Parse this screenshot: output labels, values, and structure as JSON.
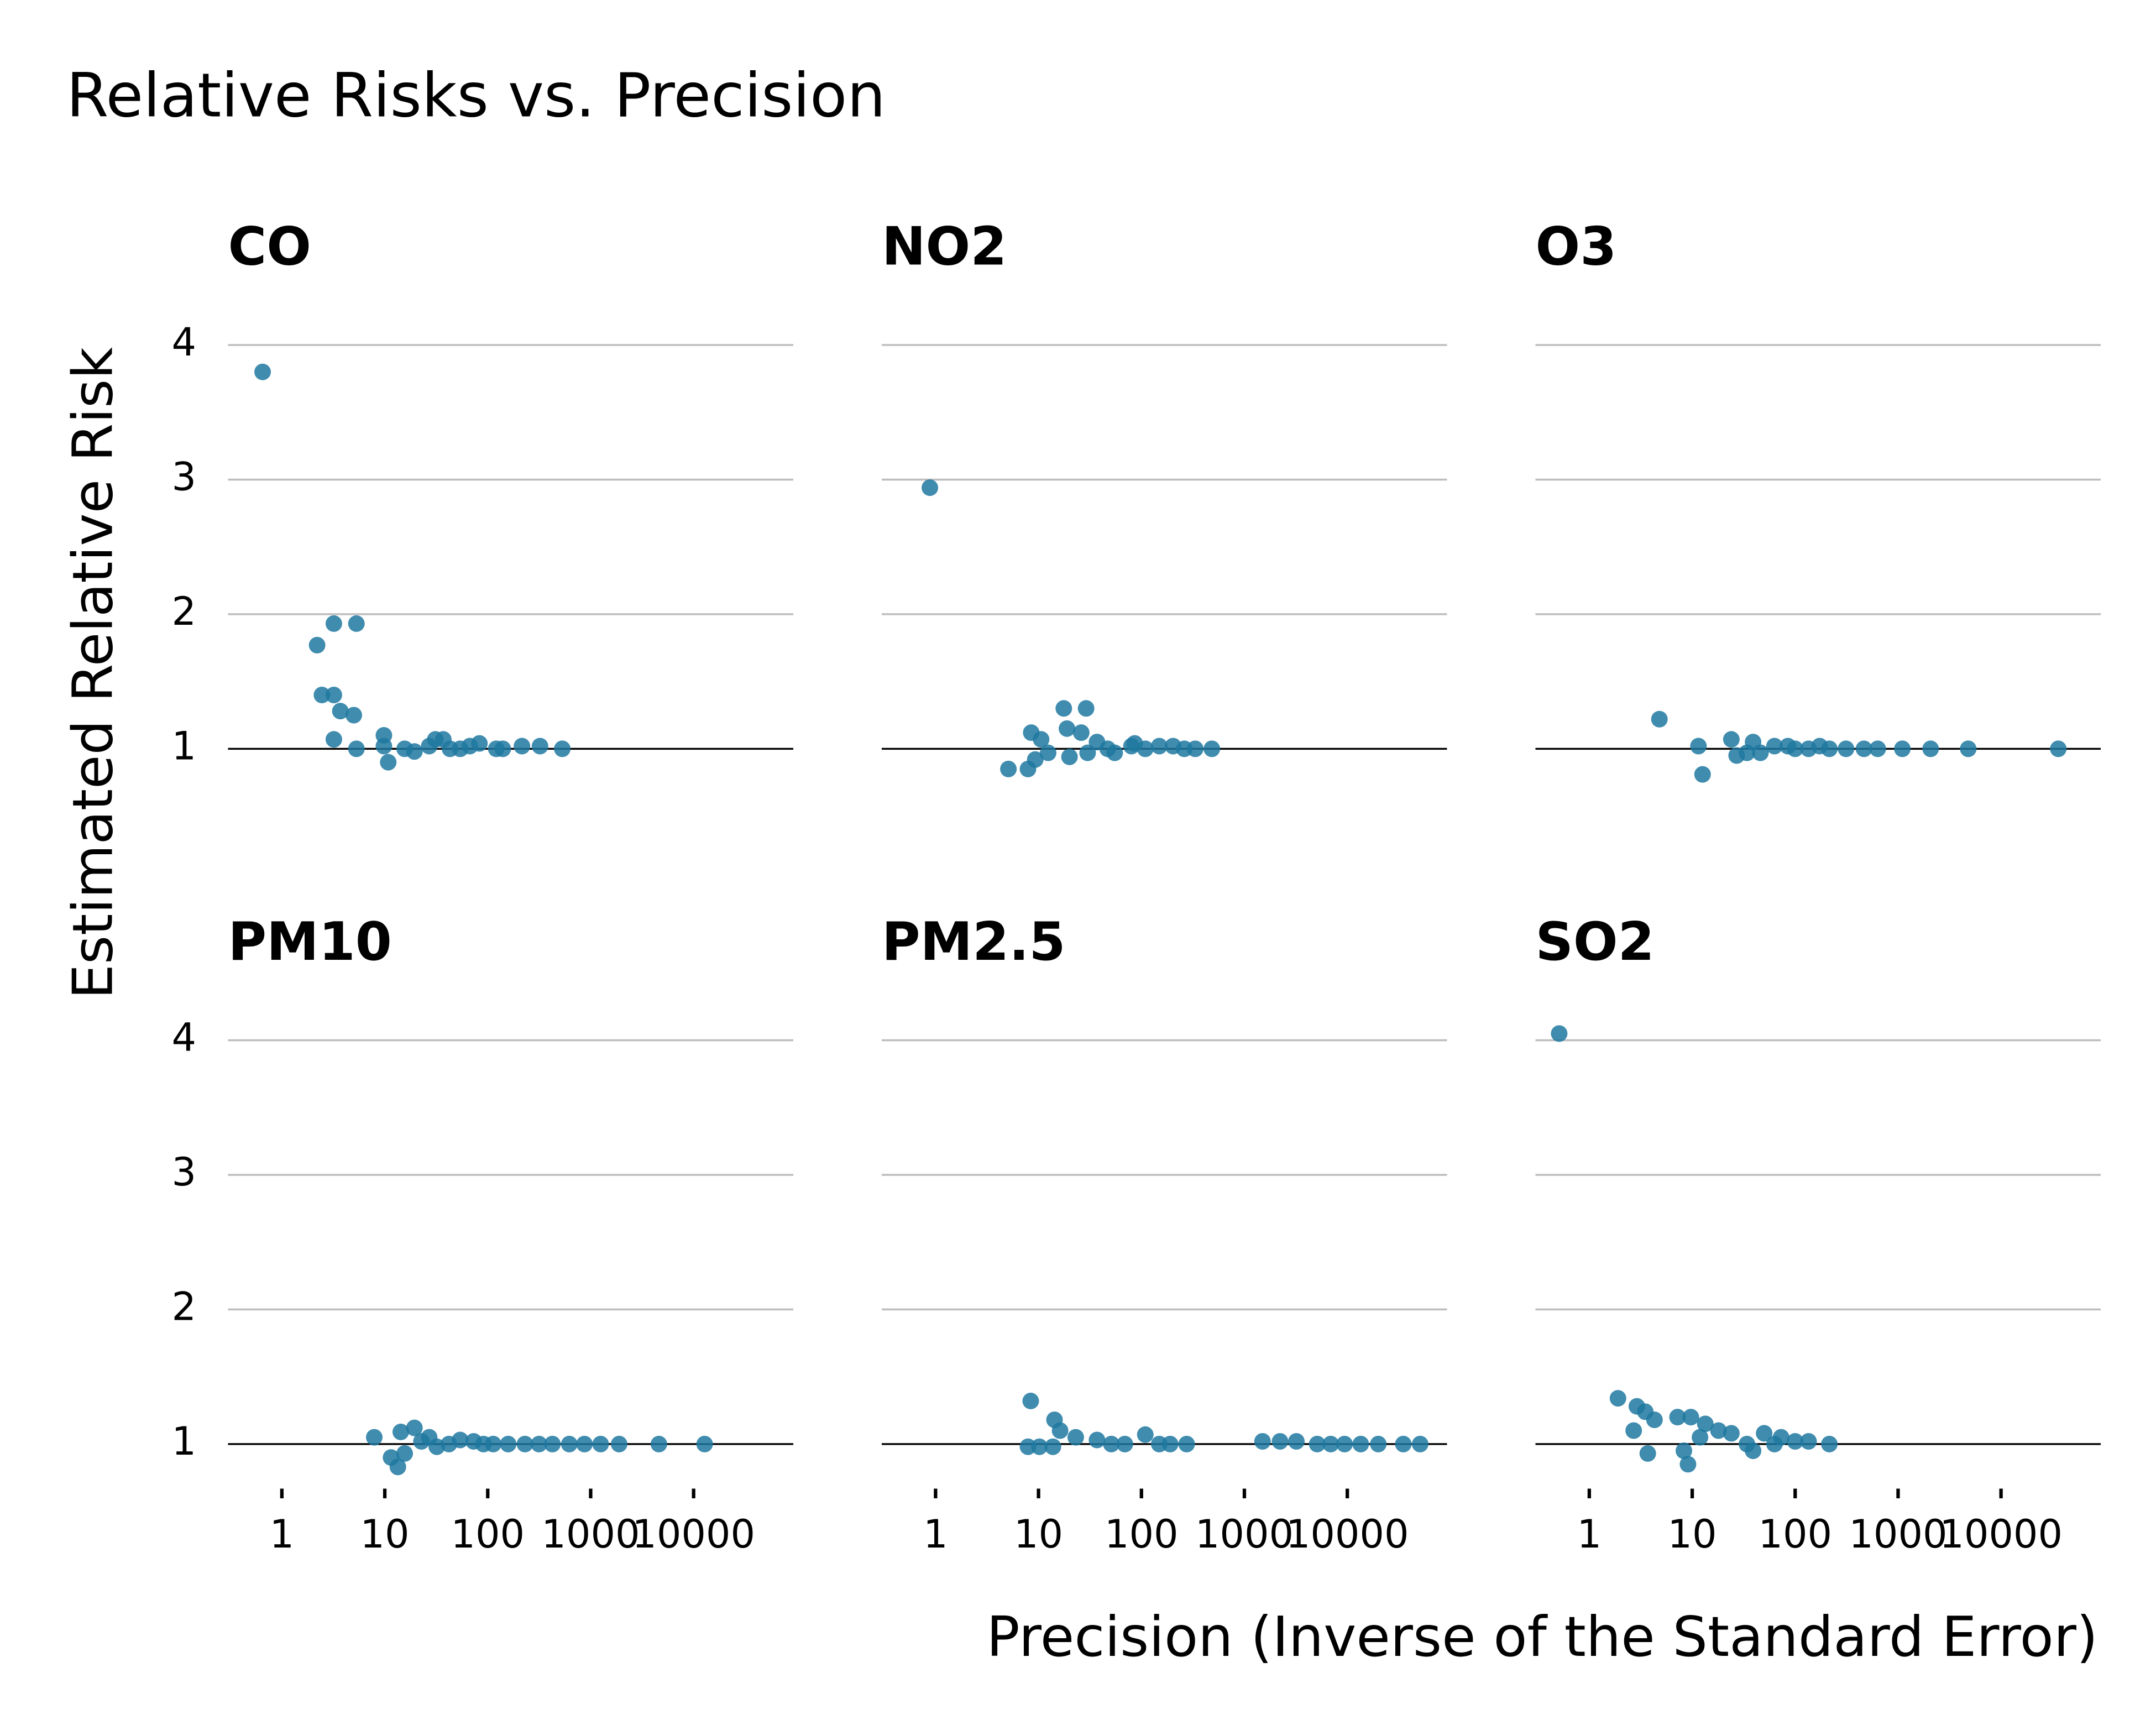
{
  "title": "Relative Risks vs. Precision",
  "x_label": "Precision (Inverse of the Standard Error)",
  "y_label": "Estimated Relative Risk",
  "xlim": [
    0.3,
    93000
  ],
  "x_scale": "log",
  "xticks": [
    1,
    10,
    100,
    1000,
    10000
  ],
  "ylim": [
    0.72,
    4.15
  ],
  "yticks": [
    1,
    2,
    3,
    4
  ],
  "grid": true,
  "hline": 1,
  "color": "#1f78a0",
  "chart_data": [
    {
      "type": "scatter",
      "title": "CO",
      "x": [
        0.65,
        2.2,
        3.2,
        5.3,
        2.45,
        3.2,
        3.7,
        5.0,
        3.2,
        5.3,
        9.8,
        9.8,
        10.8,
        15.6,
        19.4,
        27,
        31,
        37,
        43,
        54,
        67,
        83,
        121,
        140,
        215,
        322,
        530
      ],
      "values": [
        3.8,
        1.77,
        1.93,
        1.93,
        1.4,
        1.4,
        1.28,
        1.25,
        1.07,
        1.0,
        1.1,
        1.02,
        0.9,
        1.0,
        0.98,
        1.02,
        1.07,
        1.07,
        1.0,
        1.0,
        1.02,
        1.04,
        1.0,
        1.0,
        1.02,
        1.02,
        1.0
      ]
    },
    {
      "type": "scatter",
      "title": "NO2",
      "x": [
        0.88,
        5.1,
        7.9,
        8.5,
        9.3,
        10.6,
        12.4,
        17.6,
        18.9,
        20,
        26,
        29,
        30,
        37,
        47,
        55,
        80,
        86,
        109,
        149,
        203,
        261,
        333,
        483
      ],
      "values": [
        2.94,
        0.85,
        0.85,
        1.12,
        0.92,
        1.07,
        0.97,
        1.3,
        1.15,
        0.94,
        1.12,
        1.3,
        0.97,
        1.05,
        1.0,
        0.97,
        1.02,
        1.04,
        1.0,
        1.02,
        1.02,
        1.0,
        1.0,
        1.0
      ]
    },
    {
      "type": "scatter",
      "title": "O3",
      "x": [
        4.8,
        11.5,
        12.6,
        24,
        27,
        34,
        39,
        46,
        63,
        85,
        100,
        135,
        173,
        215,
        312,
        466,
        634,
        1100,
        2070,
        4800,
        36000
      ],
      "values": [
        1.22,
        1.02,
        0.81,
        1.07,
        0.95,
        0.97,
        1.05,
        0.97,
        1.02,
        1.02,
        1.0,
        1.0,
        1.02,
        1.0,
        1.0,
        1.0,
        1.0,
        1.0,
        1.0,
        1.0,
        1.0
      ]
    },
    {
      "type": "scatter",
      "title": "PM10",
      "x": [
        7.9,
        11.5,
        13.4,
        14.3,
        15.6,
        19.4,
        22.7,
        27,
        32,
        42,
        54,
        73,
        91,
        113,
        158,
        230,
        315,
        425,
        620,
        870,
        1250,
        1890,
        4600,
        12800
      ],
      "values": [
        1.05,
        0.9,
        0.83,
        1.09,
        0.93,
        1.12,
        1.02,
        1.05,
        0.98,
        1.0,
        1.03,
        1.02,
        1.0,
        1.0,
        1.0,
        1.0,
        1.0,
        1.0,
        1.0,
        1.0,
        1.0,
        1.0,
        1.0,
        1.0
      ]
    },
    {
      "type": "scatter",
      "title": "PM2.5",
      "x": [
        7.9,
        8.4,
        10.2,
        13.8,
        14.3,
        16.2,
        23,
        37,
        51,
        69,
        109,
        149,
        190,
        275,
        1500,
        2220,
        3200,
        5100,
        6900,
        9400,
        13500,
        20000,
        35000,
        51000
      ],
      "values": [
        0.98,
        1.32,
        0.98,
        0.98,
        1.18,
        1.1,
        1.05,
        1.03,
        1.0,
        1.0,
        1.07,
        1.0,
        1.0,
        1.0,
        1.02,
        1.02,
        1.02,
        1.0,
        1.0,
        1.0,
        1.0,
        1.0,
        1.0,
        1.0
      ]
    },
    {
      "type": "scatter",
      "title": "SO2",
      "x": [
        0.51,
        1.9,
        2.7,
        2.9,
        3.5,
        3.7,
        4.3,
        7.2,
        8.3,
        9.1,
        9.7,
        11.9,
        13.4,
        18,
        24,
        34,
        39,
        50,
        63,
        73,
        100,
        135,
        215
      ],
      "values": [
        4.05,
        1.34,
        1.1,
        1.28,
        1.24,
        0.93,
        1.18,
        1.2,
        0.95,
        0.85,
        1.2,
        1.05,
        1.15,
        1.1,
        1.08,
        1.0,
        0.95,
        1.08,
        1.0,
        1.05,
        1.02,
        1.02,
        1.0
      ]
    }
  ]
}
